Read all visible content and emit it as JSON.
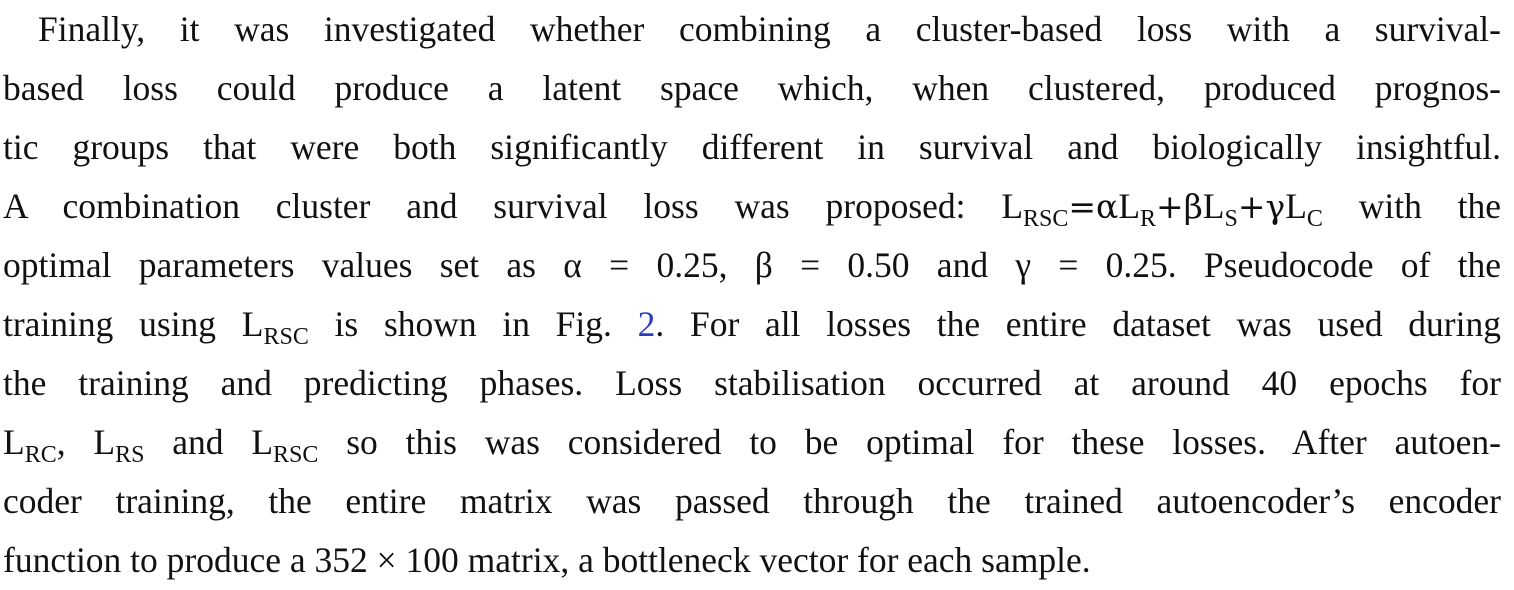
{
  "paragraph": {
    "line1": "Finally, it was investigated whether combining a cluster-based loss with a survival-",
    "line2": "based loss could produce a latent space which, when clustered, produced prognos-",
    "line3": "tic groups that were both significantly different in survival and biologically insightful.",
    "line4": {
      "text_before": "A combination cluster and survival loss was proposed: ",
      "L1": "L",
      "sub_RSC": "RSC",
      "eq": "=",
      "alpha": "α",
      "L2": "L",
      "sub_R": "R",
      "plus1": "+",
      "beta": "β",
      "L3": "L",
      "sub_S": "S",
      "plus2": "+",
      "gamma": "γ",
      "L4": "L",
      "sub_C": "C",
      "text_after": " with the"
    },
    "line5": "optimal parameters values set as α = 0.25, β = 0.50 and γ = 0.25. Pseudocode of the",
    "line6": {
      "text_before": "training using ",
      "L": "L",
      "sub": "RSC",
      "text_mid": " is shown in Fig. ",
      "fig_ref": "2",
      "text_after": ". For all losses the entire dataset was used during"
    },
    "line7": "the training and predicting phases. Loss stabilisation occurred at around 40 epochs for",
    "line8": {
      "L1": "L",
      "sub1": "RC",
      "comma": ", ",
      "L2": "L",
      "sub2": "RS",
      "and": " and ",
      "L3": "L",
      "sub3": "RSC",
      "text_after": " so this was considered to be optimal for these losses. After autoen-"
    },
    "line9": "coder training, the entire matrix was passed through the trained autoencoder’s encoder",
    "line10": "function to produce a 352 × 100 matrix, a bottleneck vector for each sample."
  }
}
